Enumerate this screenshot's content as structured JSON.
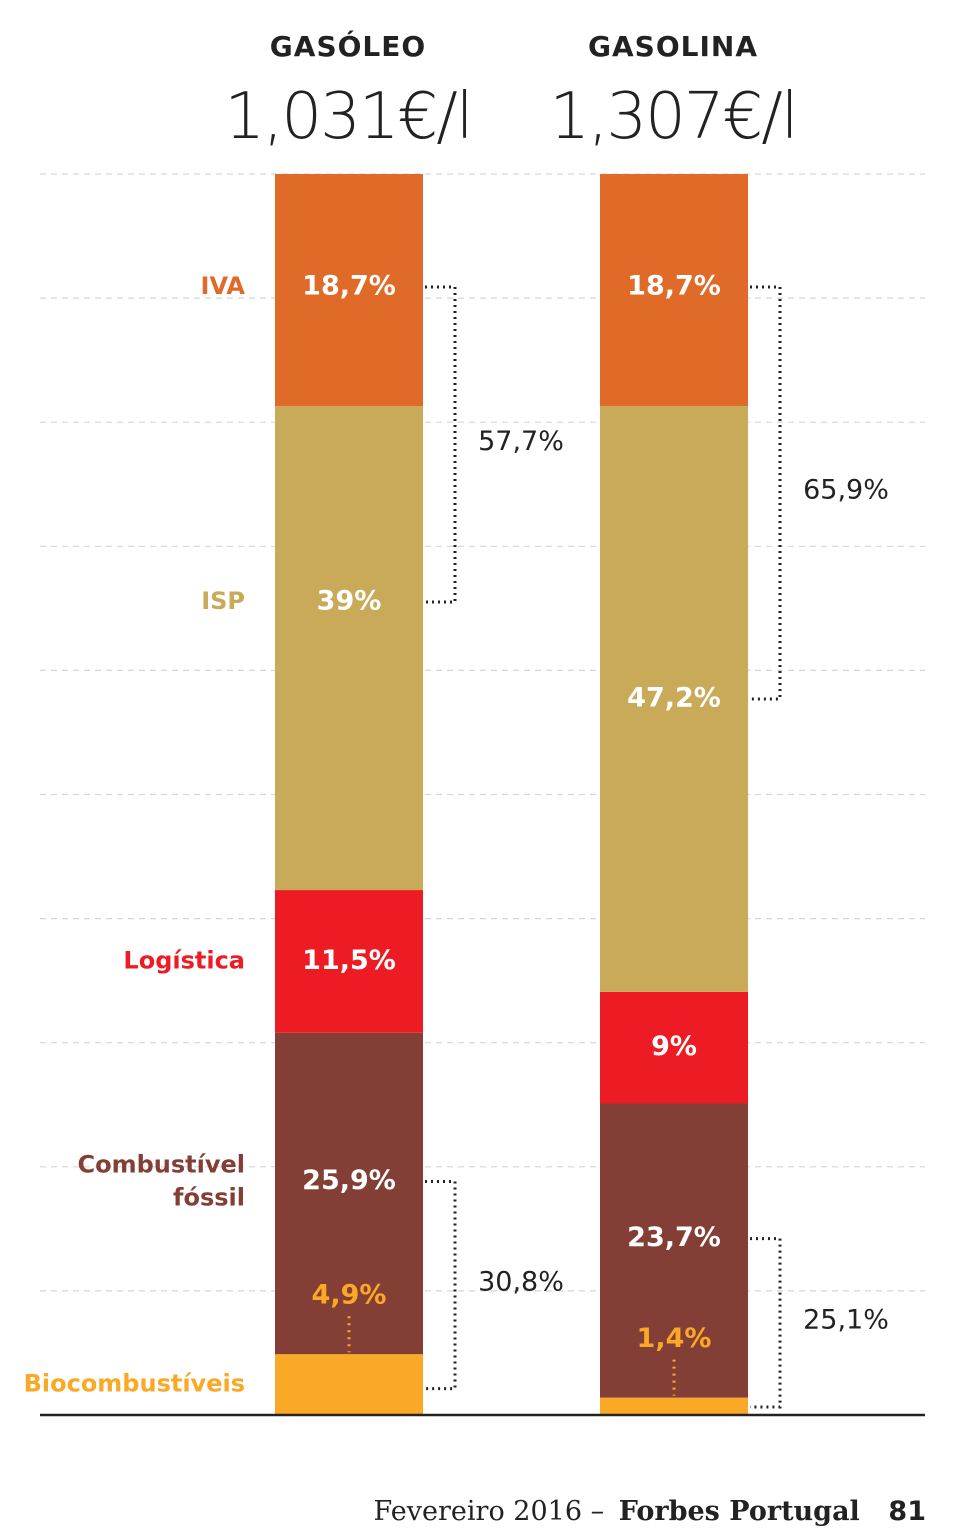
{
  "columns": [
    {
      "name": "GASÓLEO",
      "price": "1,031€/l"
    },
    {
      "name": "GASOLINA",
      "price": "1,307€/l"
    }
  ],
  "chart_data": {
    "type": "bar",
    "stacked": true,
    "grid": true,
    "categories": [
      "GASÓLEO",
      "GASOLINA"
    ],
    "series": [
      {
        "name": "Biocombustíveis",
        "values": [
          4.9,
          1.4
        ],
        "labels": [
          "4,9%",
          "1,4%"
        ],
        "color": "#f9a925",
        "label_color": "#f9a925"
      },
      {
        "name": "Combustível fóssil",
        "values": [
          25.9,
          23.7
        ],
        "labels": [
          "25,9%",
          "23,7%"
        ],
        "color": "#833f36",
        "label_color": "#ffffff"
      },
      {
        "name": "Logística",
        "values": [
          11.5,
          9.0
        ],
        "labels": [
          "11,5%",
          "9%"
        ],
        "color": "#ed1c24",
        "label_color": "#ffffff"
      },
      {
        "name": "ISP",
        "values": [
          39,
          47.2
        ],
        "labels": [
          "39%",
          "47,2%"
        ],
        "color": "#c9aa58",
        "label_color": "#ffffff"
      },
      {
        "name": "IVA",
        "values": [
          18.7,
          18.7
        ],
        "labels": [
          "18,7%",
          "18,7%"
        ],
        "color": "#e06a28",
        "label_color": "#ffffff"
      }
    ],
    "legend_labels": [
      {
        "lines": [
          "IVA"
        ],
        "color": "#e06a28"
      },
      {
        "lines": [
          "ISP"
        ],
        "color": "#c9aa58"
      },
      {
        "lines": [
          "Logística"
        ],
        "color": "#ed1c24"
      },
      {
        "lines": [
          "Combustível",
          "fóssil"
        ],
        "color": "#833f36"
      },
      {
        "lines": [
          "Biocombustíveis"
        ],
        "color": "#f9a925"
      }
    ],
    "brackets": [
      {
        "column": 0,
        "label": "57,7%",
        "from": "IVA",
        "to": "ISP"
      },
      {
        "column": 0,
        "label": "30,8%",
        "from": "Combustível fóssil",
        "to": "Biocombustíveis"
      },
      {
        "column": 1,
        "label": "65,9%",
        "from": "IVA",
        "to": "ISP"
      },
      {
        "column": 1,
        "label": "25,1%",
        "from": "Combustível fóssil",
        "to": "Biocombustíveis"
      }
    ],
    "ylim": [
      0,
      100
    ]
  },
  "footer": {
    "date": "Fevereiro 2016",
    "separator": "–",
    "brand": "Forbes Portugal",
    "page": "81"
  }
}
